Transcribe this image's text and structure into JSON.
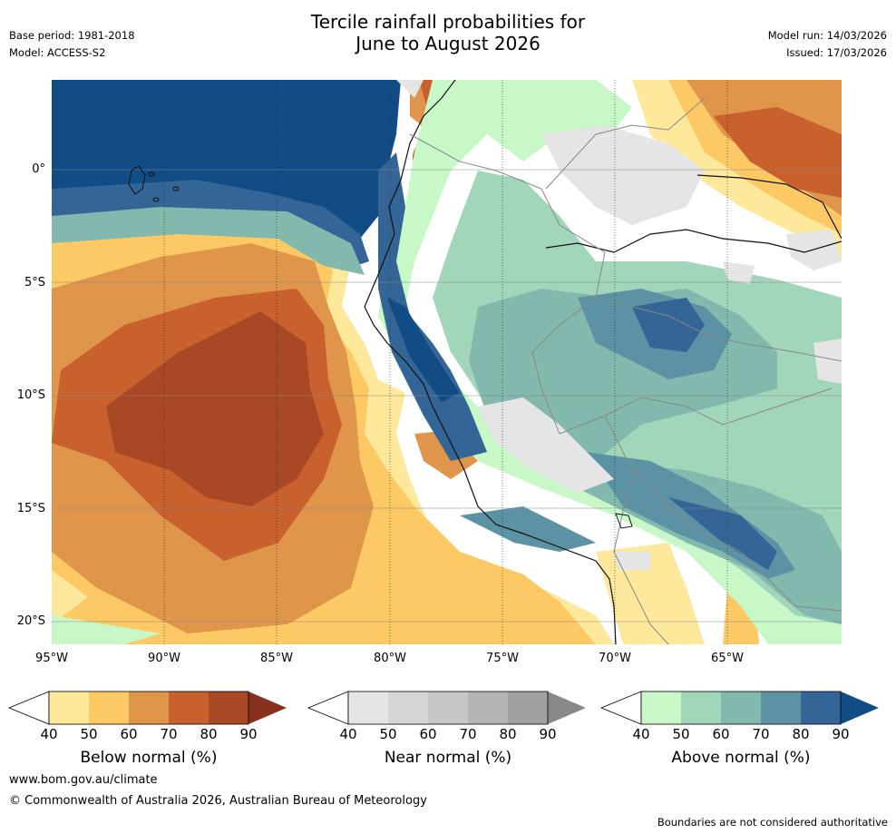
{
  "header": {
    "title_line1": "Tercile rainfall probabilities for",
    "title_line2": "June to August 2026",
    "base_period": "Base period: 1981-2018",
    "model": "Model: ACCESS-S2",
    "model_run": "Model run: 14/03/2026",
    "issued": "Issued: 17/03/2026"
  },
  "map": {
    "lat_labels": [
      "0°",
      "5°S",
      "10°S",
      "15°S",
      "20°S"
    ],
    "lon_labels": [
      "95°W",
      "90°W",
      "85°W",
      "80°W",
      "75°W",
      "70°W",
      "65°W"
    ]
  },
  "colorbars": [
    {
      "title": "Below normal (%)",
      "ticks": [
        "40",
        "50",
        "60",
        "70",
        "80",
        "90"
      ],
      "colors": [
        "#fee89c",
        "#fdc964",
        "#e0964a",
        "#c9612f",
        "#a94824",
        "#86311d"
      ]
    },
    {
      "title": "Near normal (%)",
      "ticks": [
        "40",
        "50",
        "60",
        "70",
        "80",
        "90"
      ],
      "colors": [
        "#e5e5e5",
        "#d6d6d6",
        "#c6c6c6",
        "#b4b4b4",
        "#a0a0a0",
        "#888888"
      ]
    },
    {
      "title": "Above normal (%)",
      "ticks": [
        "40",
        "50",
        "60",
        "70",
        "80",
        "90"
      ],
      "colors": [
        "#c8f8c8",
        "#a2d6bb",
        "#82b8ad",
        "#5b92a4",
        "#336596",
        "#114c84"
      ]
    }
  ],
  "footer": {
    "url": "www.bom.gov.au/climate",
    "copyright": "© Commonwealth of Australia 2026, Australian Bureau of Meteorology",
    "disclaimer": "Boundaries are not considered authoritative"
  }
}
